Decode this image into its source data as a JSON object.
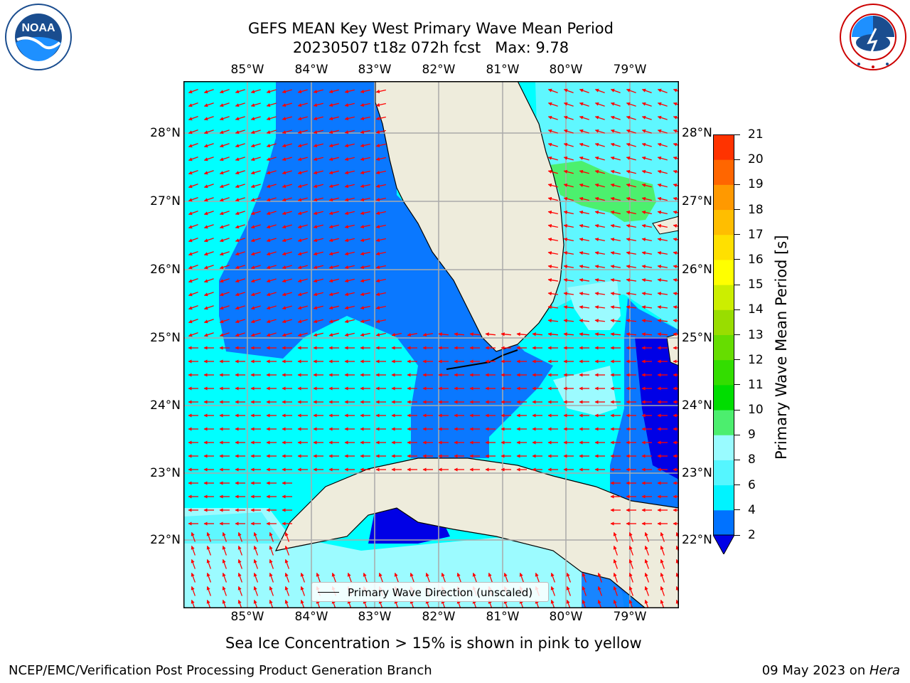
{
  "header": {
    "title_line1": "GEFS MEAN Key West Primary Wave Mean Period",
    "title_line2": "20230507 t18z 072h fcst   Max: 9.78"
  },
  "logos": {
    "left": {
      "icon": "noaa-logo-icon",
      "text": "NOAA",
      "ring_text": "NATIONAL OCEANIC AND ATMOSPHERIC ADMINISTRATION · U.S. DEPARTMENT OF COMMERCE"
    },
    "right": {
      "icon": "nws-logo-icon",
      "ring_text": "NATIONAL WEATHER SERVICE"
    }
  },
  "map": {
    "lon_labels": [
      "85°W",
      "84°W",
      "83°W",
      "82°W",
      "81°W",
      "80°W",
      "79°W"
    ],
    "lat_labels": [
      "28°N",
      "27°N",
      "26°N",
      "25°N",
      "24°N",
      "23°N",
      "22°N"
    ],
    "legend_label": "Primary Wave Direction (unscaled)",
    "colors": {
      "land": "#eeecdc",
      "ocean_blue": "#0a78ff",
      "ocean_cyan": "#00ffff",
      "ocean_lightcyan": "#5ff7ff",
      "ocean_pale": "#9cfbff",
      "ocean_darkblue": "#0000e6",
      "green": "#4cf06e",
      "arrow": "#ff0000"
    }
  },
  "colorbar": {
    "label": "Primary Wave Mean Period [s]",
    "ticks": [
      "2",
      "4",
      "6",
      "8",
      "9",
      "10",
      "11",
      "12",
      "13",
      "14",
      "15",
      "16",
      "17",
      "18",
      "19",
      "20",
      "21"
    ],
    "colors": [
      "#0072ff",
      "#00f3ff",
      "#55f6ff",
      "#99fbff",
      "#4cee6e",
      "#00dd00",
      "#33dd00",
      "#66dd00",
      "#99dd00",
      "#ccee00",
      "#ffff00",
      "#ffe000",
      "#ffbe00",
      "#ff9900",
      "#ff6600",
      "#ff3300",
      "#ff0000"
    ]
  },
  "notes": {
    "sea_ice": "Sea Ice Concentration > 15% is shown in pink to yellow"
  },
  "footer": {
    "left": "NCEP/EMC/Verification Post Processing Product Generation Branch",
    "date": "09 May 2023 on ",
    "machine": "Hera"
  }
}
